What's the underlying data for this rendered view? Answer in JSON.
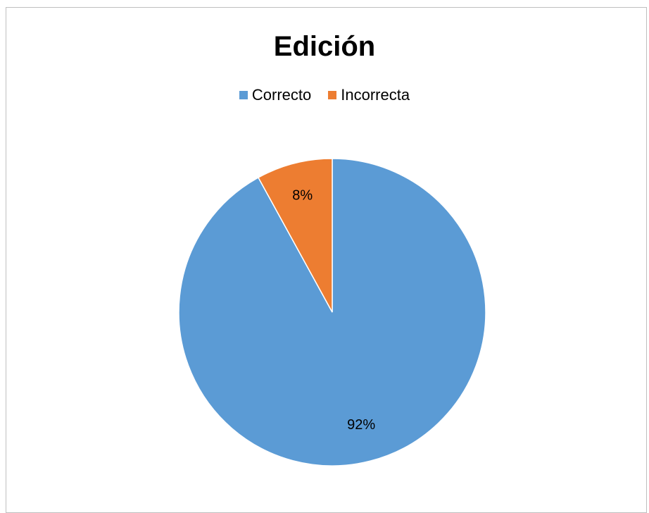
{
  "chart_data": {
    "type": "pie",
    "title": "Edición",
    "legend_position": "top",
    "categories": [
      "Correcto",
      "Incorrecta"
    ],
    "values": [
      92,
      8
    ],
    "labels": [
      "92%",
      "8%"
    ],
    "colors": [
      "#5b9bd5",
      "#ed7d31"
    ],
    "start_angle": "12 o'clock",
    "direction": "clockwise"
  }
}
